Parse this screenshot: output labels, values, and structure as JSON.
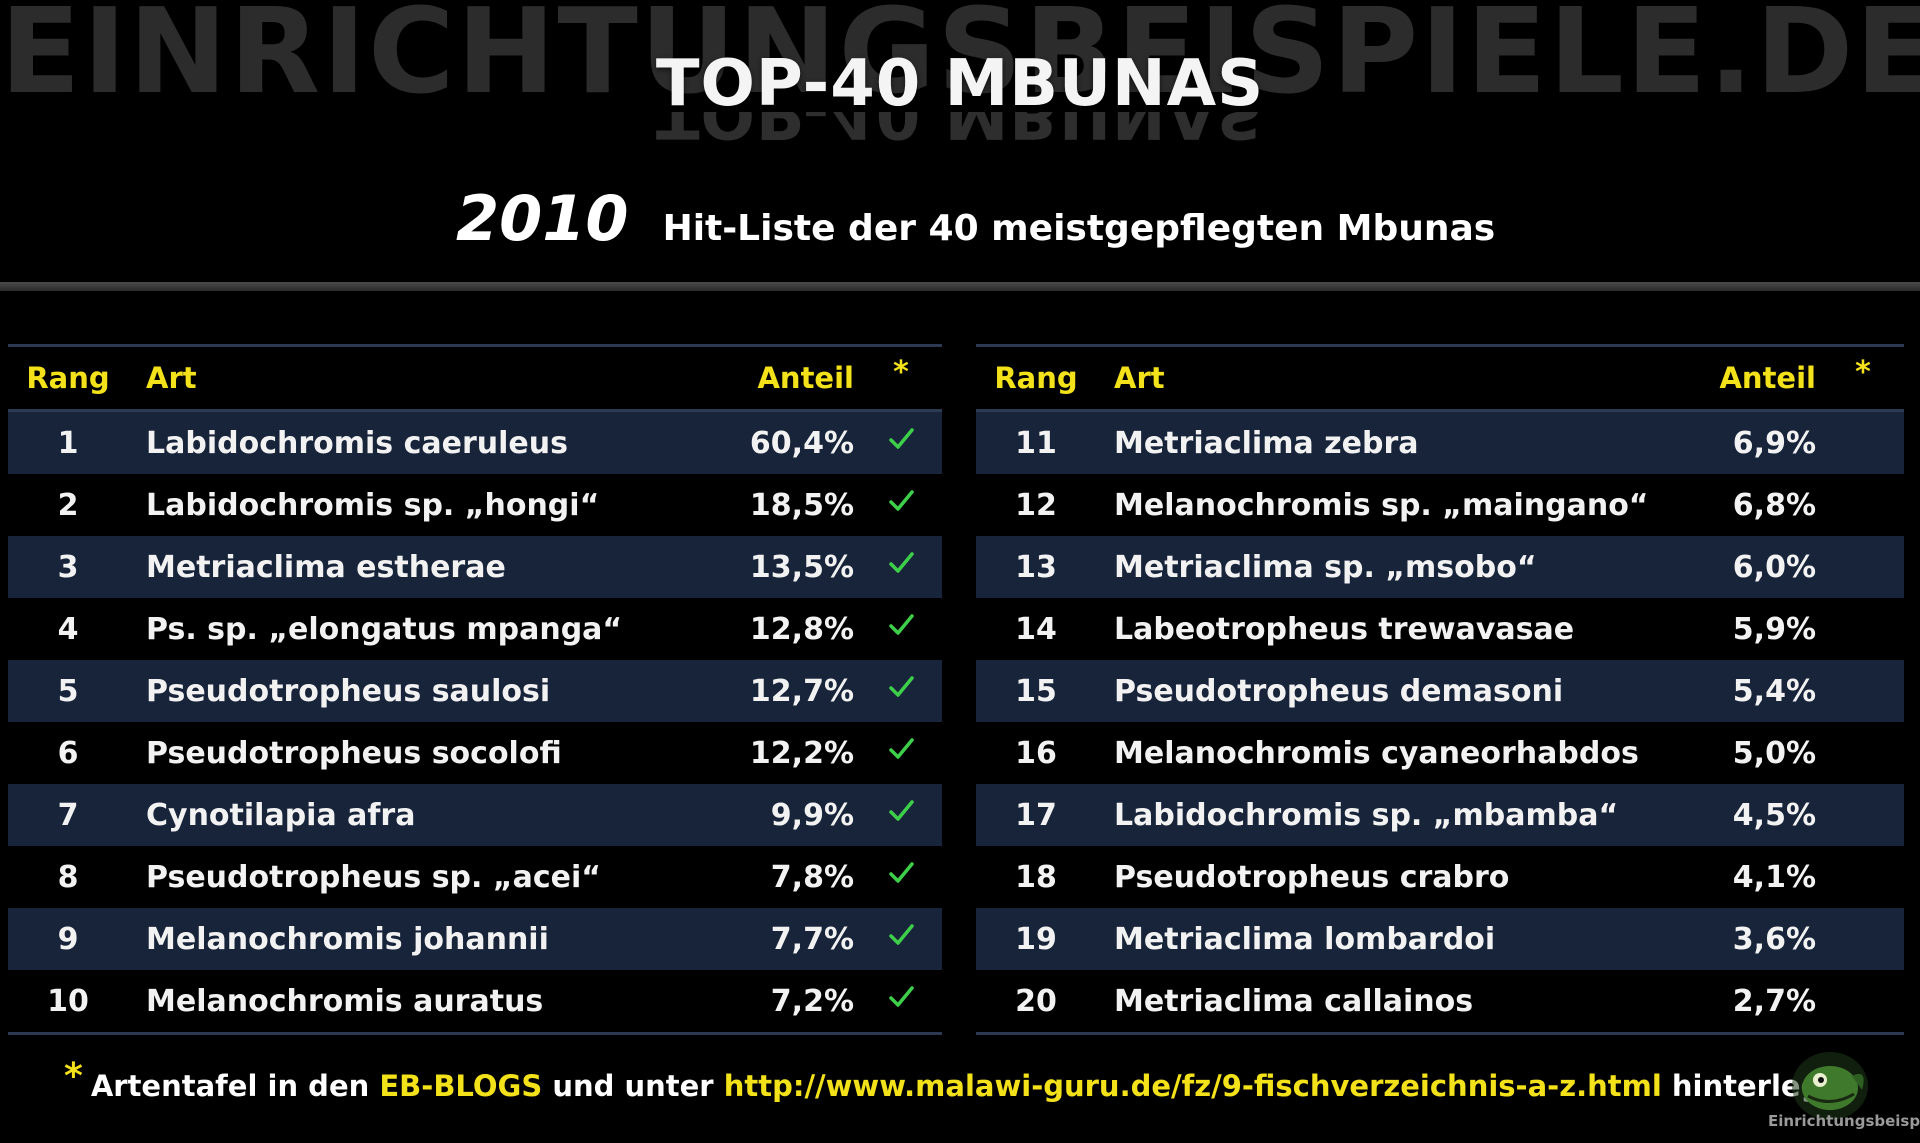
{
  "watermark": "EINRICHTUNGSBEISPIELE.DE",
  "title": "TOP-40 MBUNAS",
  "subtitle": {
    "year": "2010",
    "text": "Hit-Liste der 40 meistgepflegten Mbunas"
  },
  "columns": {
    "rank": "Rang",
    "species": "Art",
    "share": "Anteil",
    "note": "*"
  },
  "left_table": [
    {
      "rank": "1",
      "species": "Labidochromis caeruleus",
      "share": "60,4%",
      "marked": true
    },
    {
      "rank": "2",
      "species": "Labidochromis sp. „hongi“",
      "share": "18,5%",
      "marked": true
    },
    {
      "rank": "3",
      "species": "Metriaclima estherae",
      "share": "13,5%",
      "marked": true
    },
    {
      "rank": "4",
      "species": "Ps. sp. „elongatus mpanga“",
      "share": "12,8%",
      "marked": true
    },
    {
      "rank": "5",
      "species": "Pseudotropheus saulosi",
      "share": "12,7%",
      "marked": true
    },
    {
      "rank": "6",
      "species": "Pseudotropheus socolofi",
      "share": "12,2%",
      "marked": true
    },
    {
      "rank": "7",
      "species": "Cynotilapia afra",
      "share": "9,9%",
      "marked": true
    },
    {
      "rank": "8",
      "species": "Pseudotropheus sp. „acei“",
      "share": "7,8%",
      "marked": true
    },
    {
      "rank": "9",
      "species": "Melanochromis johannii",
      "share": "7,7%",
      "marked": true
    },
    {
      "rank": "10",
      "species": "Melanochromis auratus",
      "share": "7,2%",
      "marked": true
    }
  ],
  "right_table": [
    {
      "rank": "11",
      "species": "Metriaclima zebra",
      "share": "6,9%",
      "marked": false
    },
    {
      "rank": "12",
      "species": "Melanochromis sp. „maingano“",
      "share": "6,8%",
      "marked": false
    },
    {
      "rank": "13",
      "species": "Metriaclima sp. „msobo“",
      "share": "6,0%",
      "marked": false
    },
    {
      "rank": "14",
      "species": "Labeotropheus trewavasae",
      "share": "5,9%",
      "marked": false
    },
    {
      "rank": "15",
      "species": "Pseudotropheus demasoni",
      "share": "5,4%",
      "marked": false
    },
    {
      "rank": "16",
      "species": "Melanochromis cyaneorhabdos",
      "share": "5,0%",
      "marked": false
    },
    {
      "rank": "17",
      "species": "Labidochromis sp. „mbamba“",
      "share": "4,5%",
      "marked": false
    },
    {
      "rank": "18",
      "species": "Pseudotropheus crabro",
      "share": "4,1%",
      "marked": false
    },
    {
      "rank": "19",
      "species": "Metriaclima lombardoi",
      "share": "3,6%",
      "marked": false
    },
    {
      "rank": "20",
      "species": "Metriaclima callainos",
      "share": "2,7%",
      "marked": false
    }
  ],
  "footer": {
    "star": "*",
    "part1": "Artentafel in den",
    "blogs": "EB-BLOGS",
    "part2": "und unter",
    "url": "http://www.malawi-guru.de/fz/9-fischverzeichnis-a-z.html",
    "part3": "hinterlegt"
  },
  "logo_text": "Einrichtungsbeispiele",
  "colors": {
    "accent_yellow": "#f3e11a",
    "check_green": "#3ecf4a",
    "row_band": "#18243a"
  }
}
